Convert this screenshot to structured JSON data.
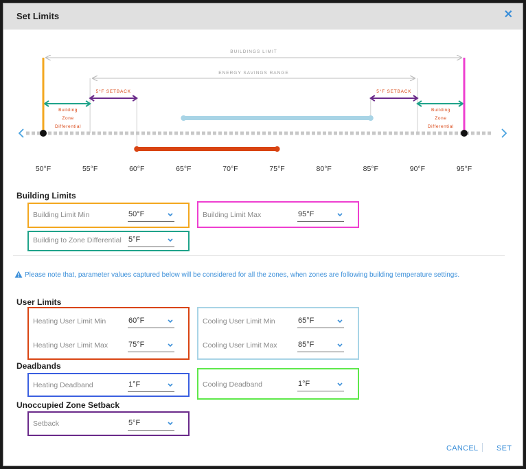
{
  "dialog": {
    "title": "Set Limits",
    "close_icon": "close-icon"
  },
  "range_chart": {
    "ticks": [
      "50°F",
      "55°F",
      "60°F",
      "65°F",
      "70°F",
      "75°F",
      "80°F",
      "85°F",
      "90°F",
      "95°F"
    ],
    "buildings_limit_label": "BUILDINGS LIMIT",
    "energy_savings_label": "ENERGY SAVINGS RANGE",
    "setback_left_label": "5°F SETBACK",
    "setback_right_label": "5°F SETBACK",
    "zone_diff_left_lines": [
      "Building",
      "Zone",
      "Differential"
    ],
    "zone_diff_right_lines": [
      "Building",
      "Zone",
      "Differential"
    ],
    "building_min": 50,
    "building_max": 95,
    "heating_range": [
      60,
      75
    ],
    "cooling_range": [
      65,
      85
    ],
    "energy_range": [
      55,
      90
    ],
    "colors": {
      "building_min": "#f3a71f",
      "building_max": "#ee3fd0",
      "heating": "#d94412",
      "cooling": "#a8d4e6",
      "zone_diff": "#1fa38a",
      "setback": "#6a2a8a"
    }
  },
  "building_limits": {
    "title": "Building Limits",
    "min_label": "Building Limit Min",
    "min_value": "50°F",
    "max_label": "Building Limit Max",
    "max_value": "95°F",
    "diff_label": "Building to Zone Differential",
    "diff_value": "5°F"
  },
  "note": "Please note that, parameter values captured below will be considered for all the zones, when zones are following building temperature settings.",
  "user_limits": {
    "title": "User Limits",
    "heating_min_label": "Heating User Limit Min",
    "heating_min_value": "60°F",
    "heating_max_label": "Heating User Limit Max",
    "heating_max_value": "75°F",
    "cooling_min_label": "Cooling User Limit Min",
    "cooling_min_value": "65°F",
    "cooling_max_label": "Cooling User Limit Max",
    "cooling_max_value": "85°F"
  },
  "deadbands": {
    "title": "Deadbands",
    "heating_label": "Heating Deadband",
    "heating_value": "1°F",
    "cooling_label": "Cooling Deadband",
    "cooling_value": "1°F"
  },
  "setback": {
    "title": "Unoccupied Zone Setback",
    "label": "Setback",
    "value": "5°F"
  },
  "footer": {
    "cancel": "CANCEL",
    "set": "SET"
  },
  "box_colors": {
    "building_min": "#f3a71f",
    "building_max": "#ee3fd0",
    "diff": "#1fa38a",
    "heating": "#d94412",
    "cooling": "#a8d4e6",
    "heating_deadband": "#3a5fe0",
    "cooling_deadband": "#5ee84a",
    "setback": "#6a2a8a"
  }
}
